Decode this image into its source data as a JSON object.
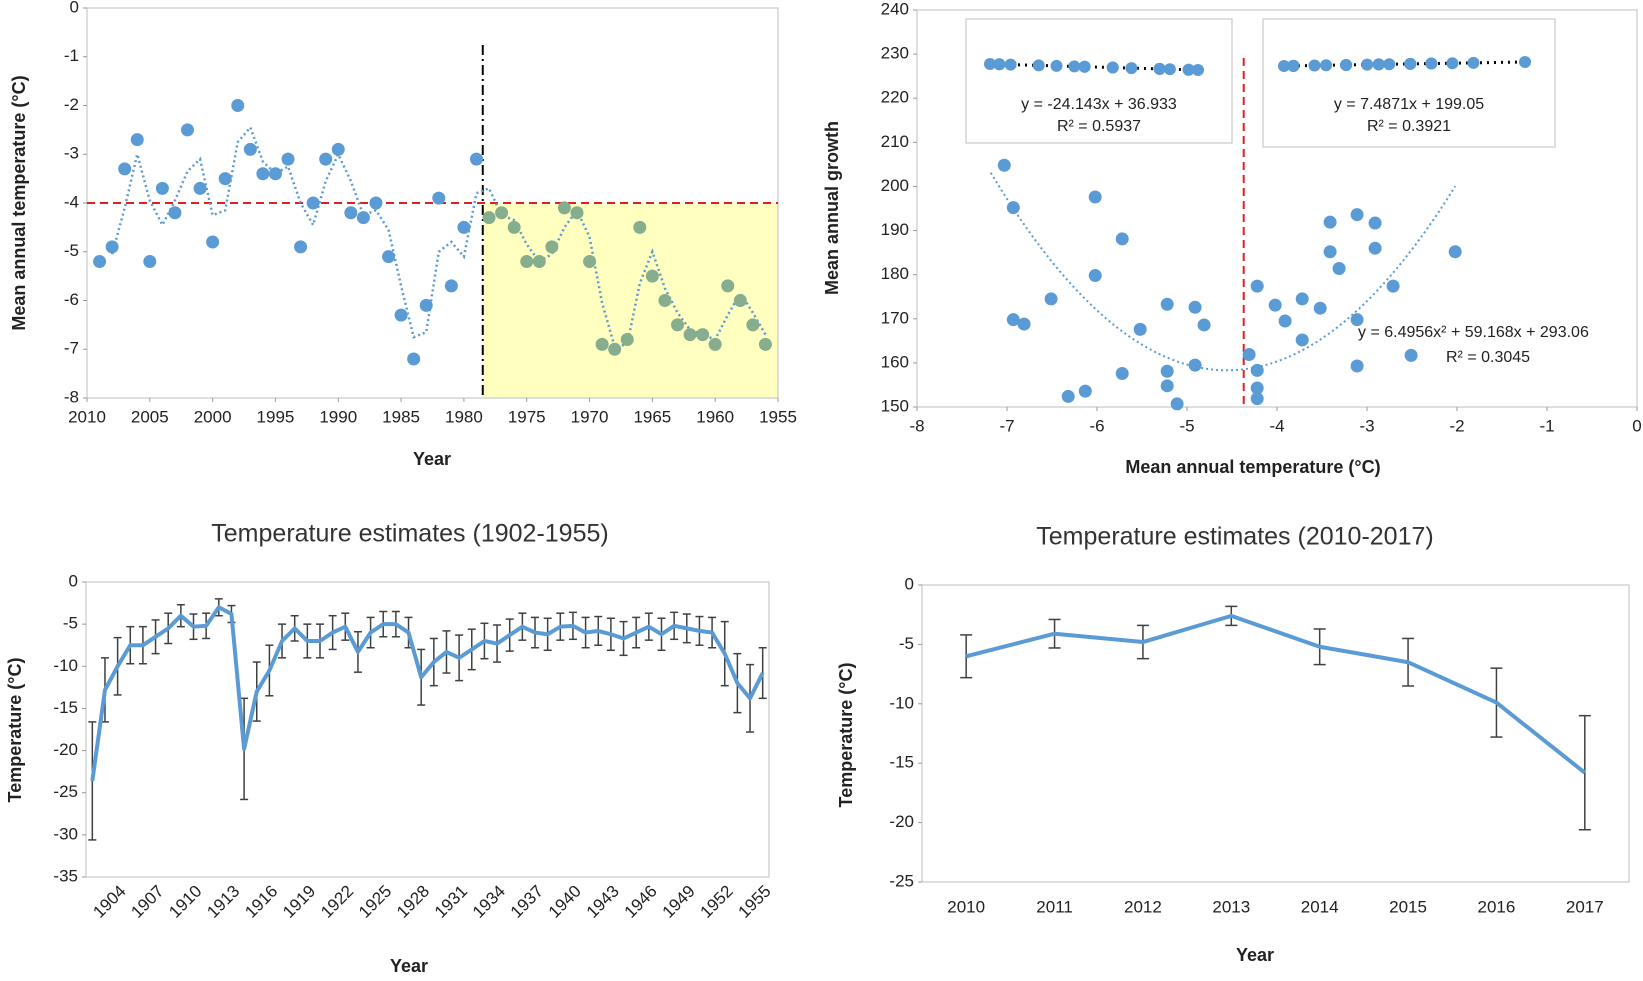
{
  "chart_data": [
    {
      "type": "scatter",
      "x_label": "Year",
      "y_label": "Mean annual temperature (°C)",
      "series": [
        {
          "color": "#5b9bd5",
          "x": [
            2009,
            2008,
            2007,
            2006,
            2005,
            2004,
            2003,
            2002,
            2001,
            2000,
            1999,
            1998,
            1997,
            1996,
            1995,
            1994,
            1993,
            1992,
            1991,
            1990,
            1989,
            1988,
            1987,
            1986,
            1985,
            1984,
            1983,
            1982,
            1981,
            1980,
            1979
          ],
          "values": [
            -5.2,
            -4.9,
            -3.3,
            -2.7,
            -5.2,
            -3.7,
            -4.2,
            -2.5,
            -3.7,
            -4.8,
            -3.5,
            -2.0,
            -2.9,
            -3.4,
            -3.4,
            -3.1,
            -4.9,
            -4.0,
            -3.1,
            -2.9,
            -4.2,
            -4.3,
            -4.0,
            -5.1,
            -6.3,
            -7.2,
            -6.1,
            -3.9,
            -5.7,
            -4.5,
            -3.1
          ]
        },
        {
          "color": "#86ad8e",
          "x": [
            1978,
            1977,
            1976,
            1975,
            1974,
            1973,
            1972,
            1971,
            1970,
            1969,
            1968,
            1967,
            1966,
            1965,
            1964,
            1963,
            1962,
            1961,
            1960,
            1959,
            1958,
            1957,
            1956
          ],
          "values": [
            -4.3,
            -4.2,
            -4.5,
            -5.2,
            -5.2,
            -4.9,
            -4.1,
            -4.2,
            -5.2,
            -6.9,
            -7.0,
            -6.8,
            -4.5,
            -5.5,
            -6.0,
            -6.5,
            -6.7,
            -6.7,
            -6.9,
            -5.7,
            -6.0,
            -6.5,
            -6.9
          ]
        }
      ],
      "trendline": {
        "type": "moving_average",
        "period": 2,
        "color": "#5b9bd5"
      },
      "reference_lines": {
        "h": -4,
        "v": 1978.5,
        "h_color": "#e02020",
        "v_color": "#000000"
      },
      "shaded_region": {
        "x": [
          1978.5,
          1955
        ],
        "y": [
          -8,
          -4
        ],
        "color": "#ffffc0"
      },
      "xlim": [
        2010,
        1955
      ],
      "xticks": [
        2010,
        2005,
        2000,
        1995,
        1990,
        1985,
        1980,
        1975,
        1970,
        1965,
        1960,
        1955
      ],
      "ylim": [
        -8,
        0
      ],
      "yticks": [
        -8,
        -7,
        -6,
        -5,
        -4,
        -3,
        -2,
        -1,
        0
      ]
    },
    {
      "type": "scatter",
      "x_label": "Mean annual temperature (°C)",
      "y_label": "Mean annual growth",
      "color": "#5b9bd5",
      "x": [
        -7.03,
        -6.93,
        -6.93,
        -6.81,
        -6.51,
        -6.32,
        -6.13,
        -6.02,
        -6.02,
        -5.72,
        -5.72,
        -5.52,
        -5.22,
        -5.22,
        -5.22,
        -5.11,
        -4.91,
        -4.91,
        -4.81,
        -4.31,
        -4.22,
        -4.22,
        -4.22,
        -4.22,
        -4.02,
        -3.91,
        -3.72,
        -3.72,
        -3.52,
        -3.41,
        -3.41,
        -3.31,
        -3.11,
        -3.11,
        -3.11,
        -2.91,
        -2.91,
        -2.71,
        -2.51,
        -2.02
      ],
      "values": [
        204.8,
        195.2,
        169.8,
        168.8,
        174.5,
        152.4,
        153.6,
        197.6,
        179.8,
        188.1,
        157.6,
        167.6,
        173.3,
        158.1,
        154.8,
        150.7,
        172.6,
        159.5,
        168.6,
        161.9,
        177.4,
        158.3,
        154.3,
        151.9,
        173.1,
        169.5,
        174.5,
        165.2,
        172.4,
        191.9,
        185.2,
        181.4,
        193.6,
        169.8,
        159.3,
        191.7,
        186.0,
        177.4,
        161.7,
        185.2
      ],
      "threshold_x": -4.37,
      "threshold_color": "#e02020",
      "trendline": {
        "type": "polynomial",
        "coefficients": [
          6.4956,
          59.168,
          293.06
        ],
        "equation": "y = 6.4956x² + 59.168x + 293.06",
        "r2": "R² = 0.3045"
      },
      "insets": [
        {
          "equation": "y = -24.143x + 36.933",
          "r2": "R² = 0.5937"
        },
        {
          "equation": "y = 7.4871x + 199.05",
          "r2": "R² = 0.3921"
        }
      ],
      "xlim": [
        -8,
        0
      ],
      "xticks": [
        -8,
        -7,
        -6,
        -5,
        -4,
        -3,
        -2,
        -1,
        0
      ],
      "ylim": [
        150,
        240
      ],
      "yticks": [
        150,
        160,
        170,
        180,
        190,
        200,
        210,
        220,
        230,
        240
      ]
    },
    {
      "type": "line",
      "title": "Temperature estimates (1902-1955)",
      "x_label": "Year",
      "y_label": "Temperature (°C)",
      "color": "#5b9bd5",
      "categories": [
        null,
        null,
        "1904",
        null,
        null,
        "1907",
        null,
        null,
        "1910",
        null,
        null,
        "1913",
        null,
        null,
        "1916",
        null,
        null,
        "1919",
        null,
        null,
        "1922",
        null,
        null,
        "1925",
        null,
        null,
        "1928",
        null,
        null,
        "1931",
        null,
        null,
        "1934",
        null,
        null,
        "1937",
        null,
        null,
        "1940",
        null,
        null,
        "1943",
        null,
        null,
        "1946",
        null,
        null,
        "1949",
        null,
        null,
        "1952",
        null,
        null,
        "1955"
      ],
      "values": [
        -23.6,
        -12.8,
        -10,
        -7.5,
        -7.5,
        -6.5,
        -5.5,
        -4.0,
        -5.3,
        -5.2,
        -3.0,
        -3.8,
        -19.8,
        -13,
        -10.5,
        -7,
        -5.5,
        -7,
        -7,
        -6,
        -5.3,
        -8.3,
        -6,
        -5,
        -5,
        -6,
        -11.3,
        -9.5,
        -8.3,
        -9,
        -8,
        -7,
        -7.3,
        -6.3,
        -5.3,
        -6,
        -6.2,
        -5.3,
        -5.2,
        -6,
        -5.8,
        -6.2,
        -6.7,
        -6,
        -5.3,
        -6.2,
        -5.2,
        -5.5,
        -5.8,
        -6,
        -8.5,
        -12,
        -13.8,
        -10.8
      ],
      "errors": [
        7,
        3.8,
        3.4,
        2.2,
        2.2,
        2,
        1.8,
        1.3,
        1.5,
        1.5,
        1,
        1,
        6,
        3.5,
        3,
        2,
        1.5,
        2,
        2,
        2,
        1.6,
        2.4,
        1.8,
        1.5,
        1.5,
        1.8,
        3.3,
        2.8,
        2.5,
        2.7,
        2.4,
        2.1,
        2.2,
        1.9,
        1.6,
        1.8,
        1.9,
        1.6,
        1.6,
        1.8,
        1.7,
        1.9,
        2,
        1.8,
        1.6,
        1.9,
        1.6,
        1.7,
        1.7,
        1.8,
        3.8,
        3.5,
        4,
        3
      ],
      "ylim": [
        -35,
        0
      ],
      "yticks": [
        -35,
        -30,
        -25,
        -20,
        -15,
        -10,
        -5,
        0
      ]
    },
    {
      "type": "line",
      "title": "Temperature estimates (2010-2017)",
      "x_label": "Year",
      "y_label": "Temperature (°C)",
      "color": "#5b9bd5",
      "categories": [
        "2010",
        "2011",
        "2012",
        "2013",
        "2014",
        "2015",
        "2016",
        "2017"
      ],
      "values": [
        -6.0,
        -4.1,
        -4.8,
        -2.6,
        -5.2,
        -6.5,
        -9.9,
        -15.8
      ],
      "errors": [
        1.8,
        1.2,
        1.4,
        0.8,
        1.5,
        2,
        2.9,
        4.8
      ],
      "ylim": [
        -25,
        0
      ],
      "yticks": [
        -25,
        -20,
        -15,
        -10,
        -5,
        0
      ]
    }
  ]
}
